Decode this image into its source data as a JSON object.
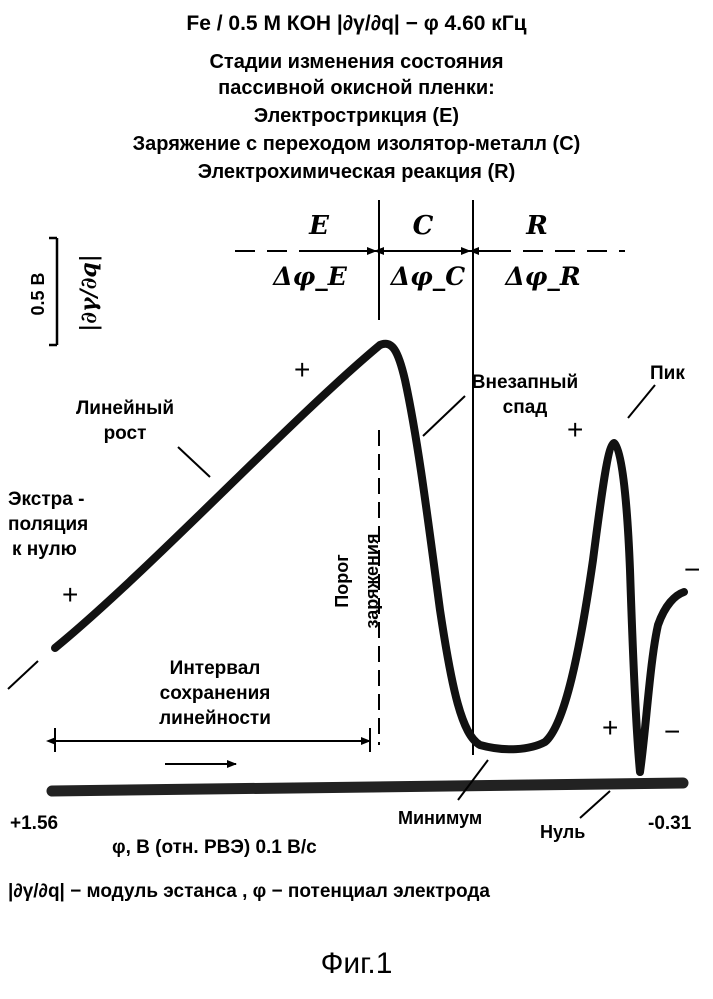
{
  "header": {
    "line1": "Fe / 0.5 M КОН    |∂γ/∂q| − φ    4.60 кГц",
    "stages_title_1": "Стадии изменения состояния",
    "stages_title_2": "пассивной окисной пленки:",
    "stage_e": "Электрострикция (E)",
    "stage_c": "Заряжение с переходом изолятор-металл (C)",
    "stage_r": "Электрохимическая реакция (R)"
  },
  "regions": {
    "e": "E",
    "c": "C",
    "r": "R",
    "dphi_e": "Δφ_E",
    "dphi_c": "Δφ_C",
    "dphi_r": "Δφ_R"
  },
  "scale_bar": {
    "value": "0.5 В",
    "quantity": "|∂γ/∂q|"
  },
  "annotations": {
    "linear_growth_1": "Линейный",
    "linear_growth_2": "рост",
    "extrap_1": "Экстра -",
    "extrap_2": "поляция",
    "extrap_3": "к нулю",
    "sudden_drop_1": "Внезапный",
    "sudden_drop_2": "спад",
    "peak": "Пик",
    "threshold_1": "Порог",
    "threshold_2": "заряжения",
    "interval_1": "Интервал",
    "interval_2": "сохранения",
    "interval_3": "линейности",
    "minimum": "Минимум",
    "zero": "Нуль",
    "plus": "+",
    "minus": "−"
  },
  "axis": {
    "left_value": "+1.56",
    "right_value": "-0.31",
    "xlabel": "φ, В (отн. РВЭ) 0.1 В/с"
  },
  "legend_line": "|∂γ/∂q| − модуль эстанса ,   φ − потенциал электрода",
  "caption": "Фиг.1"
}
